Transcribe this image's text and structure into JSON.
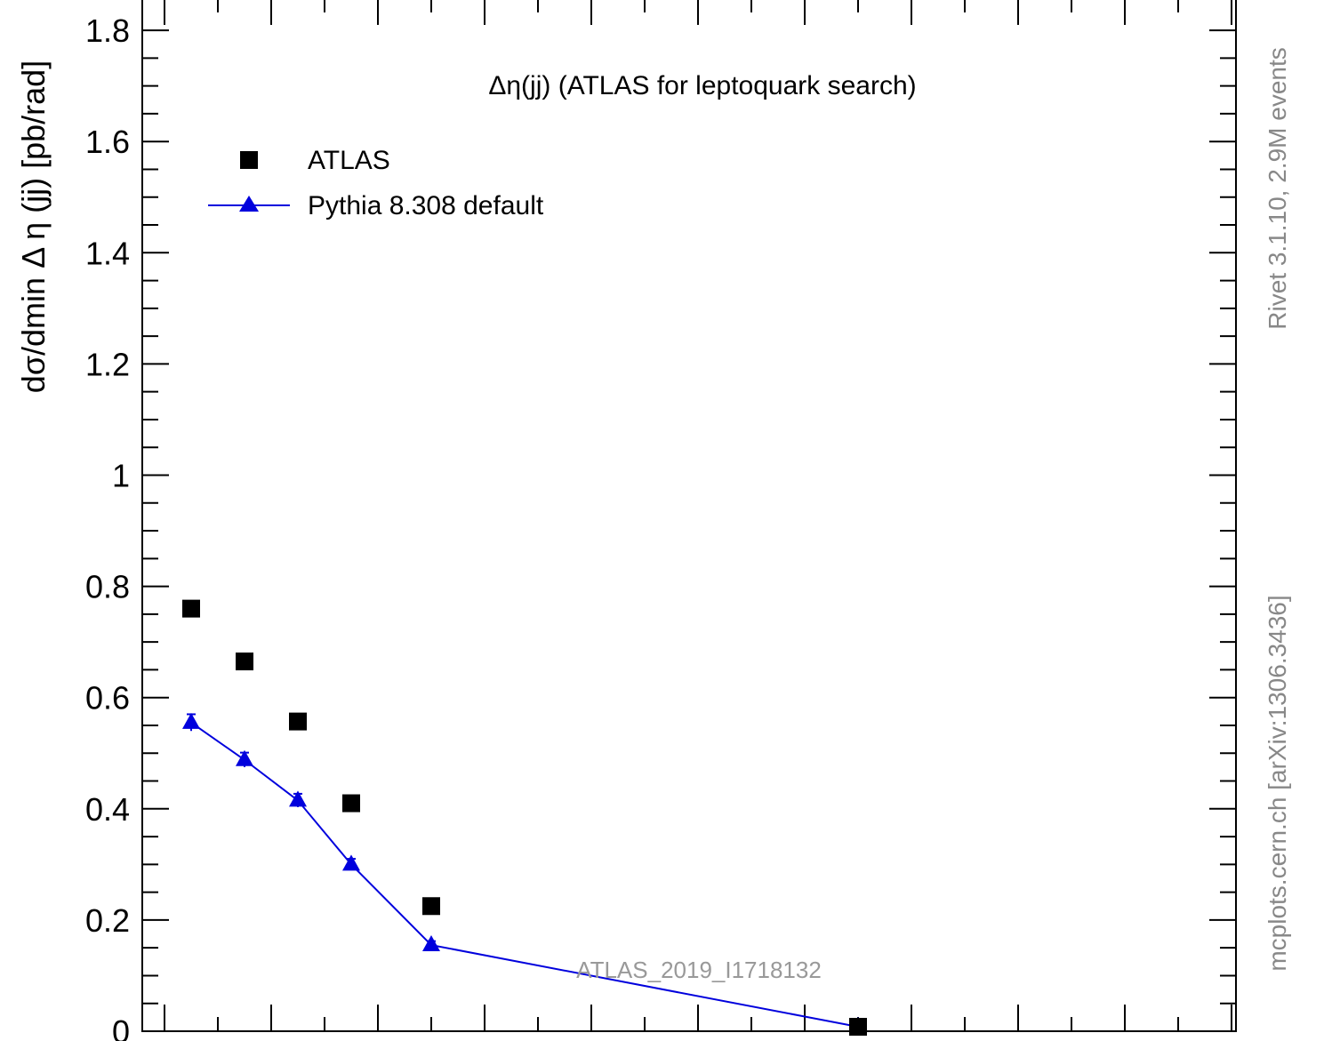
{
  "chart_data": {
    "type": "scatter",
    "title": "Δη(jj) (ATLAS for leptoquark search)",
    "ylabel": "dσ/dmin Δ η (jj) [pb/rad]",
    "ylim": [
      0,
      1.85
    ],
    "xlim": [
      0.0,
      2.0
    ],
    "y_ticks": [
      {
        "value": 0,
        "label": "0"
      },
      {
        "value": 0.2,
        "label": "0.2"
      },
      {
        "value": 0.4,
        "label": "0.4"
      },
      {
        "value": 0.6,
        "label": "0.6"
      },
      {
        "value": 0.8,
        "label": "0.8"
      },
      {
        "value": 1.0,
        "label": "1"
      },
      {
        "value": 1.2,
        "label": "1.2"
      },
      {
        "value": 1.4,
        "label": "1.4"
      },
      {
        "value": 1.6,
        "label": "1.6"
      },
      {
        "value": 1.8,
        "label": "1.8"
      }
    ],
    "series": [
      {
        "name": "ATLAS",
        "marker": "square",
        "color": "#000000",
        "points": [
          {
            "x": 0.05,
            "y": 0.76
          },
          {
            "x": 0.15,
            "y": 0.665
          },
          {
            "x": 0.25,
            "y": 0.557
          },
          {
            "x": 0.35,
            "y": 0.41
          },
          {
            "x": 0.5,
            "y": 0.225
          },
          {
            "x": 1.3,
            "y": 0.008
          }
        ]
      },
      {
        "name": "Pythia 8.308 default",
        "marker": "triangle",
        "color": "#0000dd",
        "line": true,
        "points": [
          {
            "x": 0.05,
            "y": 0.555,
            "err": 0.015
          },
          {
            "x": 0.15,
            "y": 0.488,
            "err": 0.013
          },
          {
            "x": 0.25,
            "y": 0.415,
            "err": 0.012
          },
          {
            "x": 0.35,
            "y": 0.3,
            "err": 0.01
          },
          {
            "x": 0.5,
            "y": 0.155,
            "err": 0.007
          },
          {
            "x": 1.3,
            "y": 0.008,
            "err": 0.002
          }
        ]
      }
    ],
    "legend": {
      "placement": "top-left"
    },
    "watermark": "ATLAS_2019_I1718132",
    "side_label_top": "Rivet 3.1.10,  2.9M events",
    "side_label_bottom": "mcplots.cern.ch [arXiv:1306.3436]"
  }
}
